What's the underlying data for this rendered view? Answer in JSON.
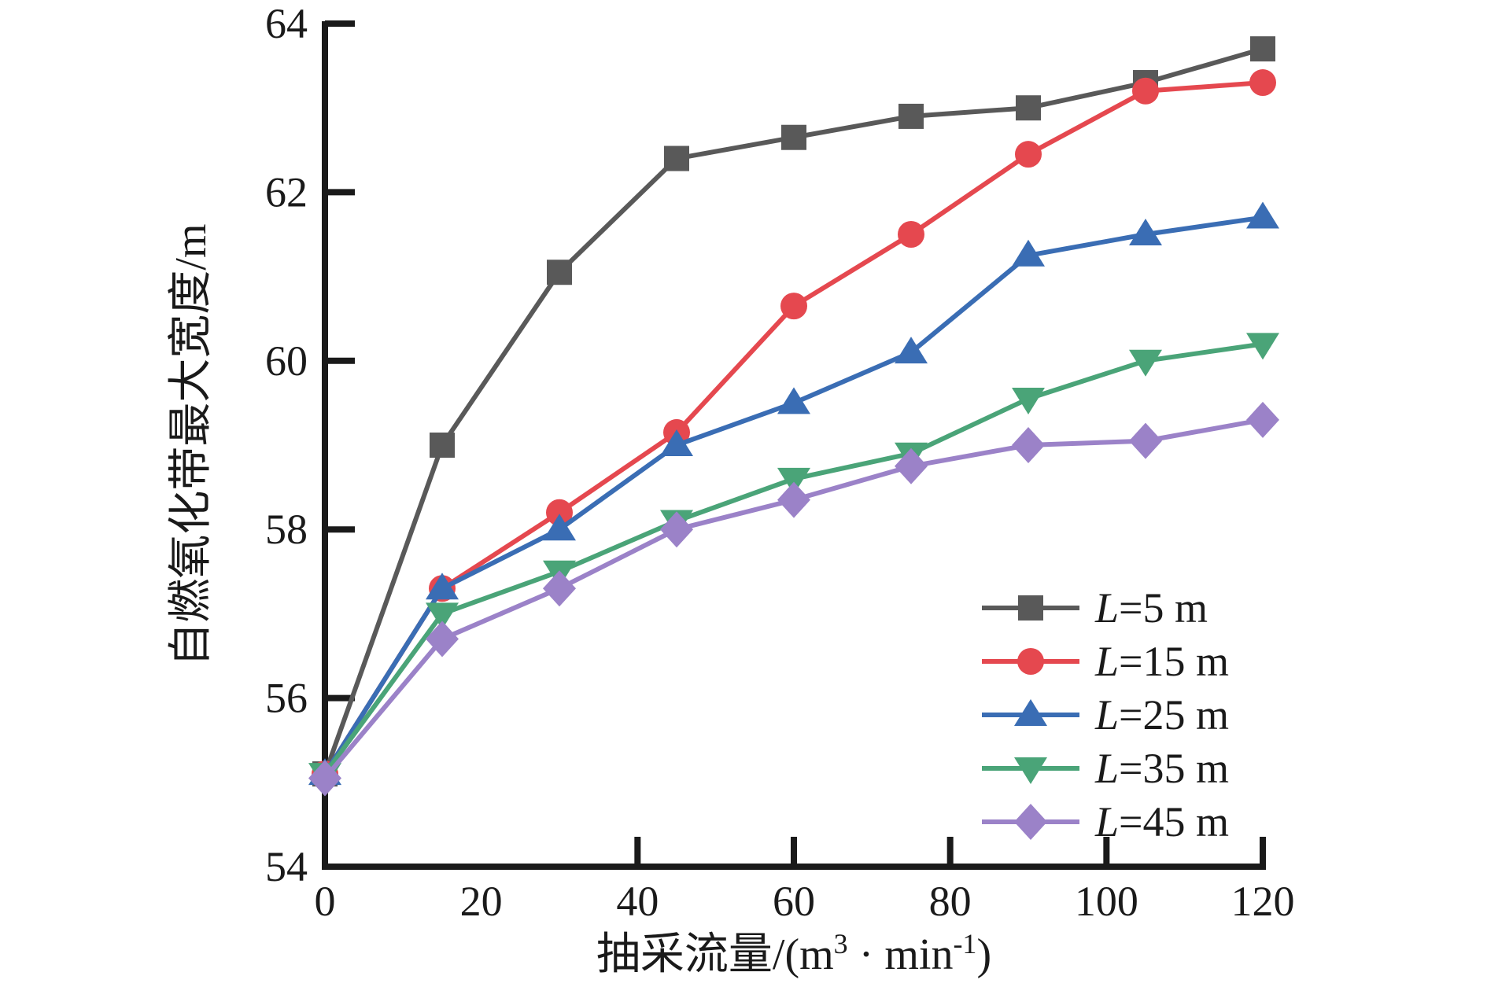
{
  "chart_data": {
    "type": "line",
    "title": "",
    "xlabel_full": "抽采流量/(m³ · min⁻¹)",
    "xlabel_parts": {
      "prefix": "抽采流量/(m",
      "sup1": "3",
      "mid": " · min",
      "sup2": "-1",
      "suffix": ")"
    },
    "ylabel": "自燃氧化带最大宽度/m",
    "xlim": [
      0,
      120
    ],
    "ylim": [
      54,
      64
    ],
    "xticks_labeled": [
      0,
      20,
      40,
      60,
      80,
      100,
      120
    ],
    "xticks_marked": [
      40,
      60,
      80,
      100,
      120
    ],
    "yticks_labeled": [
      54,
      56,
      58,
      60,
      62,
      64
    ],
    "yticks_marked": [
      56,
      58,
      60,
      62,
      64
    ],
    "grid": false,
    "legend_position": "inside lower right",
    "axis_color": "#1a1a1a",
    "x": [
      0,
      15,
      30,
      45,
      60,
      75,
      90,
      105,
      120
    ],
    "series": [
      {
        "name": "L=5 m",
        "marker": "square",
        "color": "#595959",
        "values": [
          55.1,
          59.0,
          61.05,
          62.4,
          62.65,
          62.9,
          63.0,
          63.3,
          63.7
        ]
      },
      {
        "name": "L=15 m",
        "marker": "circle",
        "color": "#e5484f",
        "values": [
          55.1,
          57.3,
          58.2,
          59.15,
          60.65,
          61.5,
          62.45,
          63.2,
          63.3
        ]
      },
      {
        "name": "L=25 m",
        "marker": "triangle-up",
        "color": "#3a6db4",
        "values": [
          55.1,
          57.3,
          58.0,
          59.0,
          59.5,
          60.1,
          61.25,
          61.5,
          61.7
        ]
      },
      {
        "name": "L=35 m",
        "marker": "triangle-down",
        "color": "#4aa478",
        "values": [
          55.1,
          57.0,
          57.5,
          58.1,
          58.6,
          58.9,
          59.55,
          60.0,
          60.2
        ]
      },
      {
        "name": "L=45 m",
        "marker": "diamond",
        "color": "#9b82c8",
        "values": [
          55.05,
          56.7,
          57.3,
          58.0,
          58.35,
          58.75,
          59.0,
          59.05,
          59.3
        ]
      }
    ]
  }
}
